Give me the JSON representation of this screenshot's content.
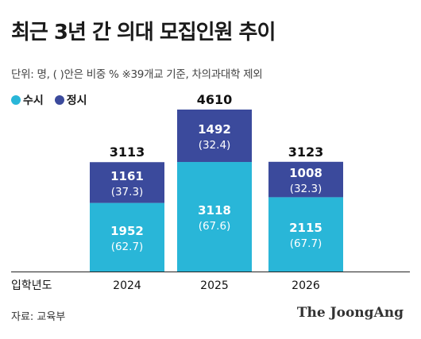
{
  "title": "최근 3년 간 의대 모집인원 추이",
  "subtitle": "단위: 명, ( )안은 비중 %   ※39개교 기준, 차의과대학 제외",
  "legend": [
    {
      "label": "수시",
      "color": "#29b6d8"
    },
    {
      "label": "정시",
      "color": "#3b4a9c"
    }
  ],
  "source": "자료: 교육부",
  "brand": "The JoongAng",
  "chart_data": {
    "type": "bar",
    "stacked": true,
    "xlabel": "입학년도",
    "categories": [
      "2024",
      "2025",
      "2026"
    ],
    "totals": [
      "3113",
      "4610",
      "3123"
    ],
    "series": [
      {
        "name": "수시",
        "color": "#29b6d8",
        "values": [
          1952,
          3118,
          2115
        ],
        "shares": [
          "(62.7)",
          "(67.6)",
          "(67.7)"
        ]
      },
      {
        "name": "정시",
        "color": "#3b4a9c",
        "values": [
          1161,
          1492,
          1008
        ],
        "shares": [
          "(37.3)",
          "(32.4)",
          "(32.3)"
        ]
      }
    ],
    "ylim": [
      0,
      4610
    ],
    "grid": false,
    "legend_position": "top-left"
  }
}
